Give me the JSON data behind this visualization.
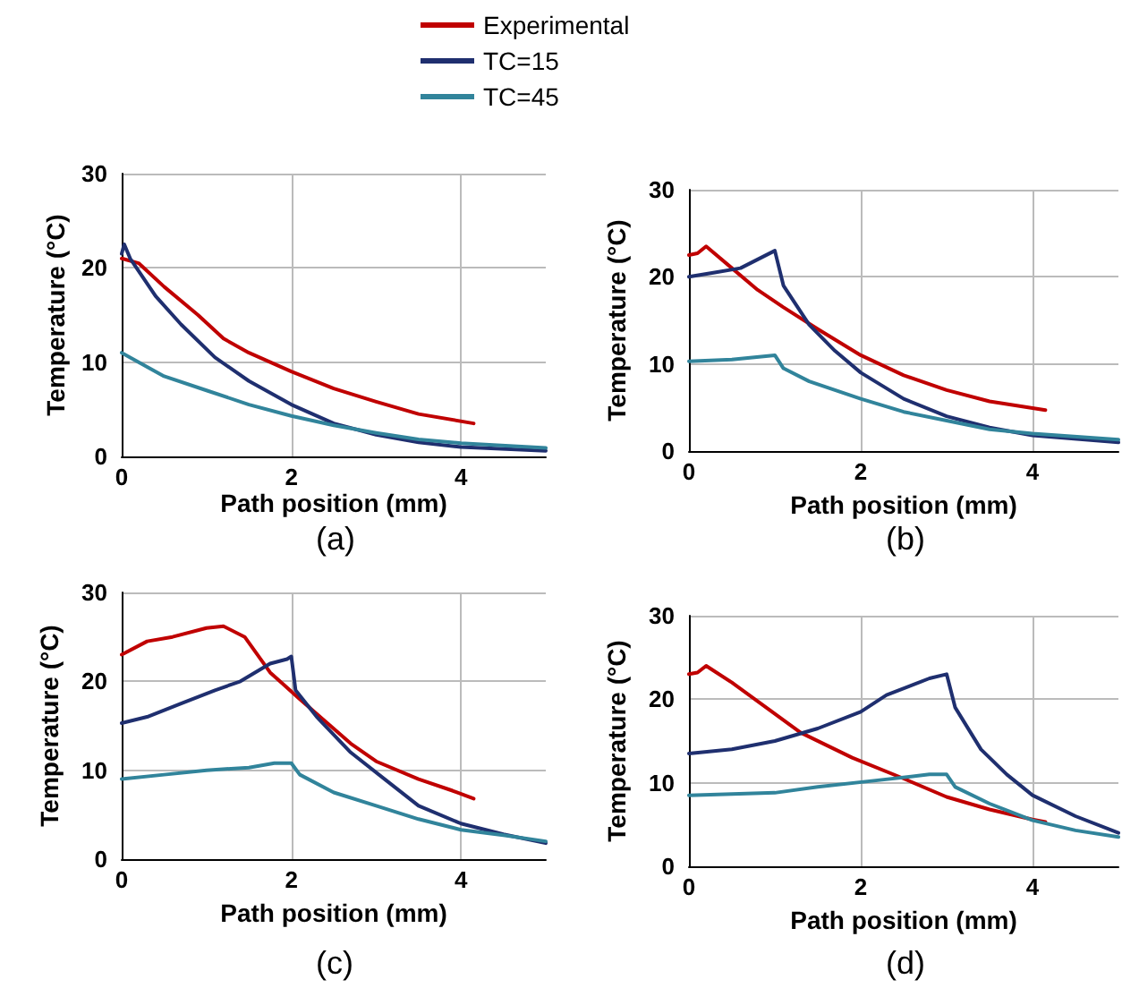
{
  "chart_data": [
    {
      "type": "line",
      "xlabel": "Path position (mm)",
      "ylabel": "Temperature (°C)",
      "annotations": [
        "(a)"
      ],
      "xlim": [
        0,
        5
      ],
      "xticks": [
        0,
        2,
        4
      ],
      "ylim": [
        0,
        30
      ],
      "yticks": [
        0,
        10,
        20,
        30
      ],
      "grid": true,
      "legend": "top",
      "marker": "none",
      "line_style": "solid",
      "series": [
        {
          "name": "Experimental",
          "color": "#c00000",
          "x": [
            0,
            0.2,
            0.5,
            0.9,
            1.2,
            1.5,
            2,
            2.5,
            3,
            3.5,
            4.15
          ],
          "values": [
            21,
            20.5,
            18,
            15,
            12.5,
            11,
            9,
            7.2,
            5.8,
            4.5,
            3.5
          ]
        },
        {
          "name": "TC=15",
          "color": "#1f2f6f",
          "x": [
            0,
            0.03,
            0.1,
            0.4,
            0.7,
            1.1,
            1.5,
            2,
            2.5,
            3,
            3.5,
            4,
            5
          ],
          "values": [
            21.5,
            22.5,
            21,
            17,
            14,
            10.5,
            8,
            5.5,
            3.5,
            2.3,
            1.5,
            1,
            0.6
          ]
        },
        {
          "name": "TC=45",
          "color": "#31849b",
          "x": [
            0,
            0.2,
            0.5,
            1,
            1.5,
            2,
            2.5,
            3,
            3.5,
            4,
            5
          ],
          "values": [
            11,
            10,
            8.5,
            7,
            5.5,
            4.3,
            3.3,
            2.5,
            1.8,
            1.4,
            0.9
          ]
        }
      ]
    },
    {
      "type": "line",
      "xlabel": "Path position (mm)",
      "ylabel": "Temperature (°C)",
      "annotations": [
        "(b)"
      ],
      "xlim": [
        0,
        5
      ],
      "xticks": [
        0,
        2,
        4
      ],
      "ylim": [
        0,
        30
      ],
      "yticks": [
        0,
        10,
        20,
        30
      ],
      "grid": true,
      "marker": "none",
      "line_style": "solid",
      "series": [
        {
          "color": "#c00000",
          "x": [
            0,
            0.1,
            0.2,
            0.5,
            0.8,
            1.1,
            1.5,
            2,
            2.5,
            3,
            3.5,
            4.15
          ],
          "values": [
            22.5,
            22.7,
            23.5,
            21,
            18.5,
            16.5,
            14,
            11,
            8.7,
            7,
            5.7,
            4.7
          ]
        },
        {
          "color": "#1f2f6f",
          "x": [
            0,
            0.3,
            0.6,
            0.8,
            1.0,
            1.1,
            1.4,
            1.7,
            2,
            2.5,
            3,
            3.5,
            4,
            5
          ],
          "values": [
            20,
            20.5,
            21,
            22,
            23,
            19,
            14.5,
            11.5,
            9,
            6,
            4,
            2.7,
            1.8,
            1
          ]
        },
        {
          "color": "#31849b",
          "x": [
            0,
            0.5,
            1.0,
            1.1,
            1.4,
            2,
            2.5,
            3,
            3.5,
            4,
            5
          ],
          "values": [
            10.3,
            10.5,
            11,
            9.5,
            8,
            6,
            4.5,
            3.5,
            2.5,
            2,
            1.3
          ]
        }
      ]
    },
    {
      "type": "line",
      "xlabel": "Path position (mm)",
      "ylabel": "Temperature (°C)",
      "annotations": [
        "(c)"
      ],
      "xlim": [
        0,
        5
      ],
      "xticks": [
        0,
        2,
        4
      ],
      "ylim": [
        0,
        30
      ],
      "yticks": [
        0,
        10,
        20,
        30
      ],
      "grid": true,
      "marker": "none",
      "line_style": "solid",
      "series": [
        {
          "color": "#c00000",
          "x": [
            0,
            0.3,
            0.6,
            1.0,
            1.2,
            1.45,
            1.75,
            2.1,
            2.4,
            2.7,
            3,
            3.5,
            3.9,
            4.15
          ],
          "values": [
            23,
            24.5,
            25,
            26,
            26.2,
            25,
            21,
            18,
            15.5,
            13,
            11,
            9,
            7.7,
            6.8
          ]
        },
        {
          "color": "#1f2f6f",
          "x": [
            0,
            0.3,
            0.7,
            1.1,
            1.4,
            1.75,
            1.95,
            2.0,
            2.05,
            2.3,
            2.7,
            3.1,
            3.5,
            4,
            4.5,
            5
          ],
          "values": [
            15.3,
            16,
            17.5,
            19,
            20,
            22,
            22.5,
            22.8,
            19,
            16,
            12,
            9,
            6,
            4,
            2.8,
            1.8
          ]
        },
        {
          "color": "#31849b",
          "x": [
            0,
            0.5,
            1,
            1.5,
            1.8,
            2.0,
            2.1,
            2.5,
            3,
            3.5,
            4,
            4.5,
            5
          ],
          "values": [
            9,
            9.5,
            10,
            10.3,
            10.8,
            10.8,
            9.5,
            7.5,
            6,
            4.5,
            3.3,
            2.7,
            2
          ]
        }
      ]
    },
    {
      "type": "line",
      "xlabel": "Path position (mm)",
      "ylabel": "Temperature (°C)",
      "annotations": [
        "(d)"
      ],
      "xlim": [
        0,
        5
      ],
      "xticks": [
        0,
        2,
        4
      ],
      "ylim": [
        0,
        30
      ],
      "yticks": [
        0,
        10,
        20,
        30
      ],
      "grid": true,
      "marker": "none",
      "line_style": "solid",
      "series": [
        {
          "color": "#c00000",
          "x": [
            0,
            0.1,
            0.2,
            0.5,
            0.9,
            1.3,
            1.9,
            2.5,
            3,
            3.5,
            4,
            4.15
          ],
          "values": [
            23,
            23.2,
            24,
            22,
            19,
            16,
            13,
            10.5,
            8.3,
            6.8,
            5.6,
            5.3
          ]
        },
        {
          "color": "#1f2f6f",
          "x": [
            0,
            0.5,
            1,
            1.5,
            2,
            2.3,
            2.8,
            3.0,
            3.1,
            3.4,
            3.7,
            4,
            4.5,
            5
          ],
          "values": [
            13.5,
            14,
            15,
            16.5,
            18.5,
            20.5,
            22.5,
            23,
            19,
            14,
            11,
            8.5,
            6,
            4
          ]
        },
        {
          "color": "#31849b",
          "x": [
            0,
            1,
            1.5,
            2.2,
            2.8,
            3.0,
            3.1,
            3.5,
            4,
            4.5,
            5
          ],
          "values": [
            8.5,
            8.8,
            9.5,
            10.3,
            11,
            11,
            9.5,
            7.5,
            5.5,
            4.3,
            3.5
          ]
        }
      ]
    }
  ]
}
